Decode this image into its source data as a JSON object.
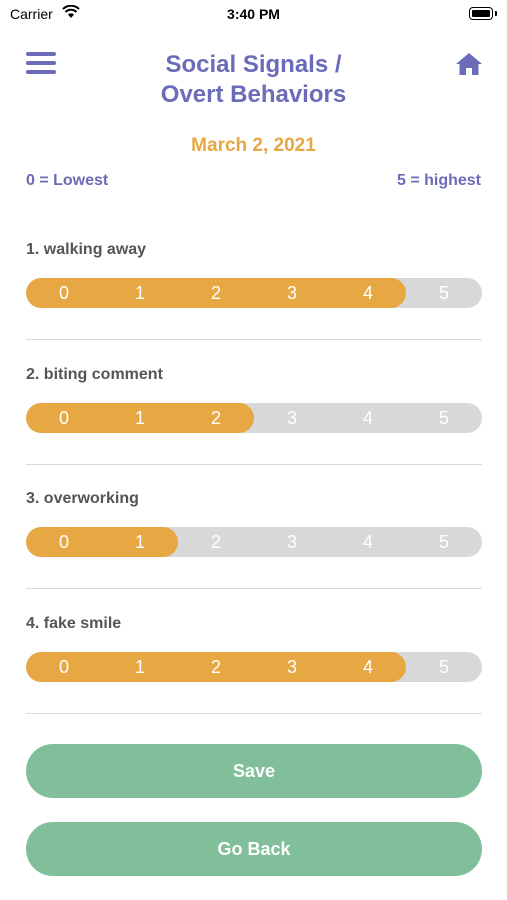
{
  "status": {
    "carrier": "Carrier",
    "time": "3:40 PM"
  },
  "header": {
    "title_line1": "Social Signals /",
    "title_line2": "Overt Behaviors",
    "menu_icon": "hamburger-menu-icon",
    "home_icon": "home-icon"
  },
  "date": "March 2, 2021",
  "legend": {
    "low": "0 = Lowest",
    "high": "5 = highest"
  },
  "scale": [
    "0",
    "1",
    "2",
    "3",
    "4",
    "5"
  ],
  "questions": [
    {
      "label": "1. walking away",
      "value": 4
    },
    {
      "label": "2. biting comment",
      "value": 2
    },
    {
      "label": "3. overworking",
      "value": 1
    },
    {
      "label": "4. fake smile",
      "value": 4
    }
  ],
  "buttons": {
    "save": "Save",
    "back": "Go Back"
  },
  "colors": {
    "accent": "#6a6cb8",
    "orange": "#e7a843",
    "green": "#80bf9a",
    "track": "#d8d8d8"
  }
}
